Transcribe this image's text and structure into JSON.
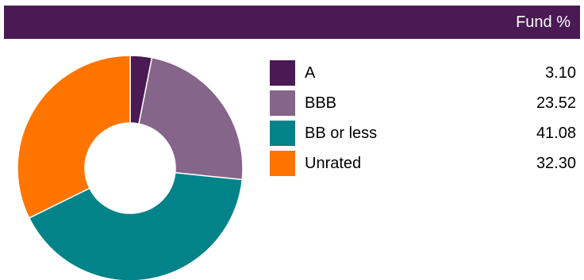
{
  "header": {
    "label": "Fund %"
  },
  "chart_data": {
    "type": "pie",
    "title": "",
    "categories": [
      "A",
      "BBB",
      "BB or less",
      "Unrated"
    ],
    "values": [
      3.1,
      23.52,
      41.08,
      32.3
    ],
    "value_labels": [
      "3.10",
      "23.52",
      "41.08",
      "32.30"
    ],
    "colors": [
      "#4a1a54",
      "#86658a",
      "#02838a",
      "#ff7500"
    ],
    "hole": "donut",
    "legend": "right"
  }
}
